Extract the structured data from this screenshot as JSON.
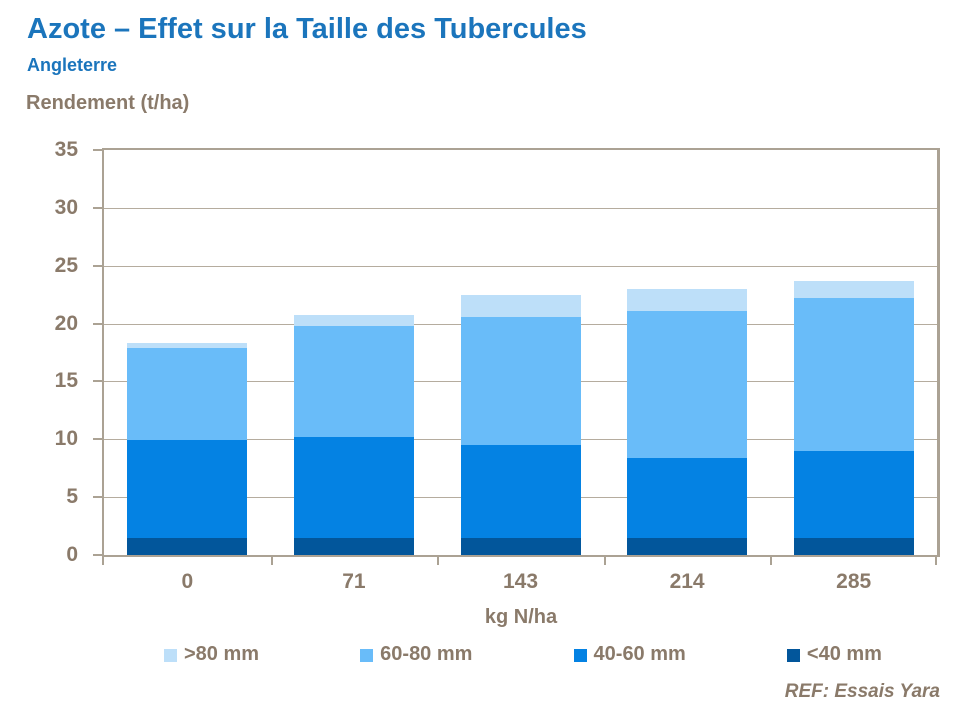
{
  "header": {
    "title": "Azote – Effet sur la Taille des Tubercules",
    "subtitle": "Angleterre"
  },
  "footer": {
    "reference": "REF: Essais Yara"
  },
  "chart_data": {
    "type": "bar",
    "stacked": true,
    "title": "Azote – Effet sur la Taille des Tubercules",
    "subtitle": "Angleterre",
    "xlabel": "kg N/ha",
    "ylabel": "Rendement (t/ha)",
    "categories": [
      "0",
      "71",
      "143",
      "214",
      "285"
    ],
    "series": [
      {
        "name": "<40 mm",
        "color": "#02569B",
        "values": [
          1.5,
          1.5,
          1.5,
          1.5,
          1.5
        ]
      },
      {
        "name": "40-60 mm",
        "color": "#0482E3",
        "values": [
          8.4,
          8.7,
          8.0,
          6.9,
          7.5
        ]
      },
      {
        "name": "60-80 mm",
        "color": "#69BCF9",
        "values": [
          8.0,
          9.6,
          11.1,
          12.7,
          13.2
        ]
      },
      {
        "name": ">80 mm",
        "color": "#BDDFF9",
        "values": [
          0.4,
          0.9,
          1.9,
          1.9,
          1.5
        ]
      }
    ],
    "totals": [
      18.3,
      20.7,
      22.5,
      23.0,
      23.7
    ],
    "ylim": [
      0,
      35
    ],
    "yticks": [
      0,
      5,
      10,
      15,
      20,
      25,
      30,
      35
    ],
    "grid": true,
    "legend_position": "bottom"
  },
  "legend": {
    "items": [
      {
        "label": ">80 mm",
        "color": "#BDDFF9"
      },
      {
        "label": "60-80 mm",
        "color": "#69BCF9"
      },
      {
        "label": "40-60 mm",
        "color": "#0482E3"
      },
      {
        "label": "<40 mm",
        "color": "#02569B"
      }
    ]
  },
  "colors": {
    "title_blue": "#1B75BC",
    "axis_text_brown": "#8A7A6A",
    "axis_line": "#ABA294",
    "gridline": "#B5AC9E"
  }
}
